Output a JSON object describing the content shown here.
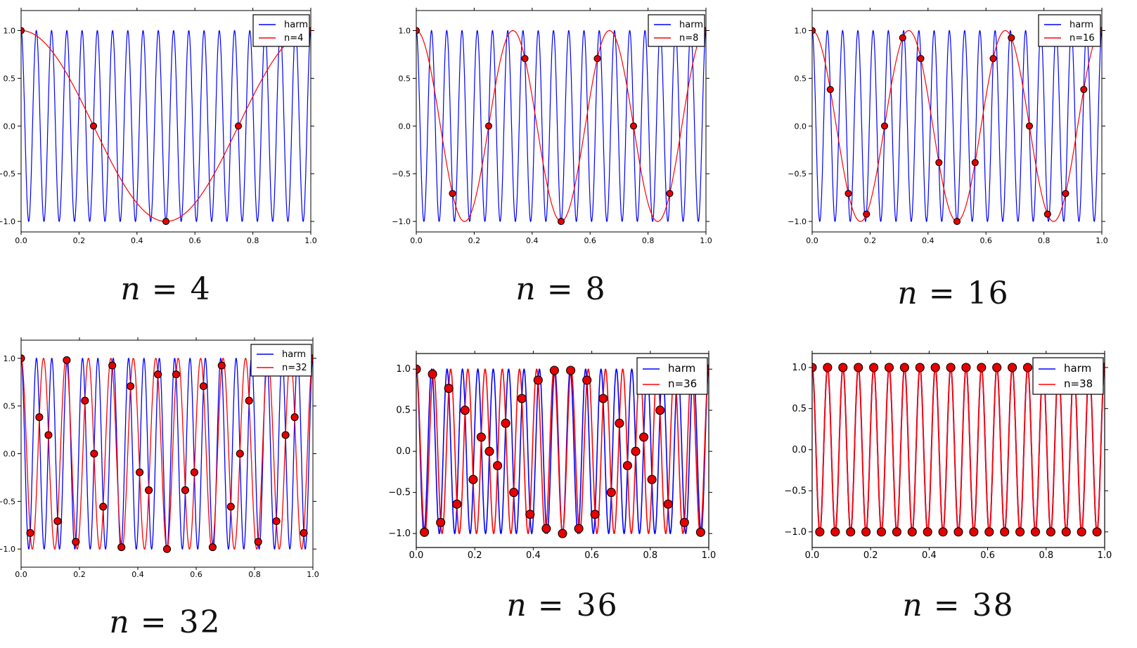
{
  "figure": {
    "background": "#ffffff",
    "description_colors": {
      "harmonic": "#0000ff",
      "alias": "#ff0000",
      "marker_fill": "#e60000",
      "marker_edge": "#000000",
      "axes": "#000000"
    }
  },
  "chart_data": [
    {
      "id": "n4",
      "type": "line",
      "caption": "n = 4",
      "caption_var": "n",
      "caption_rest": " = 4",
      "xlim": [
        0,
        1
      ],
      "ylim": [
        -1.11,
        1.21
      ],
      "x_ticks": [
        0.0,
        0.2,
        0.4,
        0.6,
        0.8,
        1.0
      ],
      "x_tick_labels": [
        "0.0",
        "0.2",
        "0.4",
        "0.6",
        "0.8",
        "1.0"
      ],
      "y_ticks": [
        -1.0,
        -0.5,
        0.0,
        0.5,
        1.0
      ],
      "y_tick_labels": [
        "−1.0",
        "−0.5",
        "0.0",
        "0.5",
        "1.0"
      ],
      "harmonic_frequency": 19,
      "alias_frequency": 1,
      "n_samples": 4,
      "legend": {
        "position": "upper right",
        "entries": [
          {
            "label": "harm",
            "color": "#0000ff"
          },
          {
            "label": "n=4",
            "color": "#ff0000"
          }
        ]
      },
      "series": [
        {
          "name": "harm",
          "type": "cosine",
          "frequency": 19,
          "amplitude": 1,
          "color": "#0000ff"
        },
        {
          "name": "n=4",
          "type": "cosine",
          "frequency": 1,
          "amplitude": 1,
          "color": "#ff0000"
        },
        {
          "name": "samples",
          "type": "scatter",
          "color": "#e60000",
          "edge": "#000000",
          "x": [
            0,
            0.25,
            0.5,
            0.75,
            1
          ],
          "y": [
            1,
            0,
            -1,
            0,
            1
          ]
        }
      ]
    },
    {
      "id": "n8",
      "type": "line",
      "caption": "n = 8",
      "caption_var": "n",
      "caption_rest": " = 8",
      "xlim": [
        0,
        1
      ],
      "ylim": [
        -1.11,
        1.21
      ],
      "x_ticks": [
        0.0,
        0.2,
        0.4,
        0.6,
        0.8,
        1.0
      ],
      "x_tick_labels": [
        "0.0",
        "0.2",
        "0.4",
        "0.6",
        "0.8",
        "1.0"
      ],
      "y_ticks": [
        -1.0,
        -0.5,
        0.0,
        0.5,
        1.0
      ],
      "y_tick_labels": [
        "−1.0",
        "−0.5",
        "0.0",
        "0.5",
        "1.0"
      ],
      "harmonic_frequency": 19,
      "alias_frequency": 3,
      "n_samples": 8,
      "legend": {
        "position": "upper right",
        "entries": [
          {
            "label": "harm",
            "color": "#0000ff"
          },
          {
            "label": "n=8",
            "color": "#ff0000"
          }
        ]
      },
      "series": [
        {
          "name": "harm",
          "type": "cosine",
          "frequency": 19,
          "amplitude": 1,
          "color": "#0000ff"
        },
        {
          "name": "n=8",
          "type": "cosine",
          "frequency": 3,
          "amplitude": 1,
          "color": "#ff0000"
        },
        {
          "name": "samples",
          "type": "scatter",
          "color": "#e60000",
          "edge": "#000000",
          "x": [
            0,
            0.125,
            0.25,
            0.375,
            0.5,
            0.625,
            0.75,
            0.875,
            1
          ],
          "y": [
            1,
            -0.7071,
            0,
            0.7071,
            -1,
            0.7071,
            0,
            -0.7071,
            1
          ]
        }
      ]
    },
    {
      "id": "n16",
      "type": "line",
      "caption": "n = 16",
      "caption_var": "n",
      "caption_rest": " = 16",
      "xlim": [
        0,
        1
      ],
      "ylim": [
        -1.11,
        1.21
      ],
      "x_ticks": [
        0.0,
        0.2,
        0.4,
        0.6,
        0.8,
        1.0
      ],
      "x_tick_labels": [
        "0.0",
        "0.2",
        "0.4",
        "0.6",
        "0.8",
        "1.0"
      ],
      "y_ticks": [
        -1.0,
        -0.5,
        0.0,
        0.5,
        1.0
      ],
      "y_tick_labels": [
        "−1.0",
        "−0.5",
        "0.0",
        "0.5",
        "1.0"
      ],
      "harmonic_frequency": 19,
      "alias_frequency": 3,
      "n_samples": 16,
      "legend": {
        "position": "upper right",
        "entries": [
          {
            "label": "harm",
            "color": "#0000ff"
          },
          {
            "label": "n=16",
            "color": "#ff0000"
          }
        ]
      },
      "series": [
        {
          "name": "harm",
          "type": "cosine",
          "frequency": 19,
          "amplitude": 1,
          "color": "#0000ff"
        },
        {
          "name": "n=16",
          "type": "cosine",
          "frequency": 3,
          "amplitude": 1,
          "color": "#ff0000"
        },
        {
          "name": "samples",
          "type": "scatter",
          "color": "#e60000",
          "edge": "#000000",
          "x": [
            0,
            0.0625,
            0.125,
            0.1875,
            0.25,
            0.3125,
            0.375,
            0.4375,
            0.5,
            0.5625,
            0.625,
            0.6875,
            0.75,
            0.8125,
            0.875,
            0.9375,
            1
          ],
          "y": [
            1,
            0.3827,
            -0.7071,
            -0.9239,
            0,
            0.9239,
            0.7071,
            -0.3827,
            -1,
            -0.3827,
            0.7071,
            0.9239,
            0,
            -0.9239,
            -0.7071,
            0.3827,
            1
          ]
        }
      ]
    },
    {
      "id": "n32",
      "type": "line",
      "caption": "n = 32",
      "caption_var": "n",
      "caption_rest": " = 32",
      "xlim": [
        0,
        1
      ],
      "ylim": [
        -1.19,
        1.19
      ],
      "x_ticks": [
        0.0,
        0.2,
        0.4,
        0.6,
        0.8,
        1.0
      ],
      "x_tick_labels": [
        "0.0",
        "0.2",
        "0.4",
        "0.6",
        "0.8",
        "1.0"
      ],
      "y_ticks": [
        -1.0,
        -0.5,
        0.0,
        0.5,
        1.0
      ],
      "y_tick_labels": [
        "−1.0",
        "−0.5",
        "0.0",
        "0.5",
        "1.0"
      ],
      "harmonic_frequency": 19,
      "alias_frequency": 13,
      "n_samples": 32,
      "legend": {
        "position": "upper right",
        "entries": [
          {
            "label": "harm",
            "color": "#0000ff"
          },
          {
            "label": "n=32",
            "color": "#ff0000"
          }
        ]
      },
      "series": [
        {
          "name": "harm",
          "type": "cosine",
          "frequency": 19,
          "amplitude": 1,
          "color": "#0000ff"
        },
        {
          "name": "n=32",
          "type": "cosine",
          "frequency": 13,
          "amplitude": 1,
          "color": "#ff0000"
        },
        {
          "name": "samples",
          "type": "scatter",
          "color": "#e60000",
          "edge": "#000000",
          "x": [
            0,
            0.0313,
            0.0625,
            0.0938,
            0.125,
            0.1563,
            0.1875,
            0.2188,
            0.25,
            0.2813,
            0.3125,
            0.3438,
            0.375,
            0.4063,
            0.4375,
            0.4688,
            0.5,
            0.5313,
            0.5625,
            0.5938,
            0.625,
            0.6563,
            0.6875,
            0.7188,
            0.75,
            0.7813,
            0.8125,
            0.8438,
            0.875,
            0.9063,
            0.9375,
            0.9688,
            1
          ],
          "y": [
            1,
            -0.8315,
            0.3827,
            0.1951,
            -0.7071,
            0.9808,
            -0.9239,
            0.5556,
            0,
            -0.5556,
            0.9239,
            -0.9808,
            0.7071,
            -0.1951,
            -0.3827,
            0.8315,
            -1,
            0.8315,
            -0.3827,
            -0.1951,
            0.7071,
            -0.9808,
            0.9239,
            -0.5556,
            0,
            0.5556,
            -0.9239,
            0.9808,
            -0.7071,
            0.1951,
            0.3827,
            -0.8315,
            1
          ]
        }
      ]
    },
    {
      "id": "n36",
      "type": "line",
      "caption": "n = 36",
      "caption_var": "n",
      "caption_rest": " = 36",
      "xlim": [
        0,
        1
      ],
      "ylim": [
        -1.17,
        1.19
      ],
      "x_ticks": [
        0.0,
        0.2,
        0.4,
        0.6,
        0.8,
        1.0
      ],
      "x_tick_labels": [
        "0.0",
        "0.2",
        "0.4",
        "0.6",
        "0.8",
        "1.0"
      ],
      "y_ticks": [
        -1.0,
        -0.5,
        0.0,
        0.5,
        1.0
      ],
      "y_tick_labels": [
        "−1.0",
        "−0.5",
        "0.0",
        "0.5",
        "1.0"
      ],
      "harmonic_frequency": 19,
      "alias_frequency": 17,
      "n_samples": 36,
      "legend": {
        "position": "upper right",
        "entries": [
          {
            "label": "harm",
            "color": "#0000ff"
          },
          {
            "label": "n=36",
            "color": "#ff0000"
          }
        ]
      },
      "series": [
        {
          "name": "harm",
          "type": "cosine",
          "frequency": 19,
          "amplitude": 1,
          "color": "#0000ff"
        },
        {
          "name": "n=36",
          "type": "cosine",
          "frequency": 17,
          "amplitude": 1,
          "color": "#ff0000"
        },
        {
          "name": "samples",
          "type": "scatter",
          "color": "#e60000",
          "edge": "#000000",
          "x": [
            0,
            0.0278,
            0.0556,
            0.0833,
            0.1111,
            0.1389,
            0.1667,
            0.1944,
            0.2222,
            0.25,
            0.2778,
            0.3056,
            0.3333,
            0.3611,
            0.3889,
            0.4167,
            0.4444,
            0.4722,
            0.5,
            0.5278,
            0.5556,
            0.5833,
            0.6111,
            0.6389,
            0.6667,
            0.6944,
            0.7222,
            0.75,
            0.7778,
            0.8056,
            0.8333,
            0.8611,
            0.8889,
            0.9167,
            0.9444,
            0.9722,
            1
          ],
          "y": [
            1,
            -0.9848,
            0.9397,
            -0.866,
            0.766,
            -0.6428,
            0.5,
            -0.342,
            0.1736,
            0,
            -0.1736,
            0.342,
            -0.5,
            0.6428,
            -0.766,
            0.866,
            -0.9397,
            0.9848,
            -1,
            0.9848,
            -0.9397,
            0.866,
            -0.766,
            0.6428,
            -0.5,
            0.342,
            -0.1736,
            0,
            0.1736,
            -0.342,
            0.5,
            -0.6428,
            0.766,
            -0.866,
            0.9397,
            -0.9848,
            1
          ]
        }
      ]
    },
    {
      "id": "n38",
      "type": "line",
      "caption": "n = 38",
      "caption_var": "n",
      "caption_rest": " = 38",
      "xlim": [
        0,
        1
      ],
      "ylim": [
        -1.19,
        1.17
      ],
      "x_ticks": [
        0.0,
        0.2,
        0.4,
        0.6,
        0.8,
        1.0
      ],
      "x_tick_labels": [
        "0.0",
        "0.2",
        "0.4",
        "0.6",
        "0.8",
        "1.0"
      ],
      "y_ticks": [
        -1.0,
        -0.5,
        0.0,
        0.5,
        1.0
      ],
      "y_tick_labels": [
        "−1.0",
        "−0.5",
        "0.0",
        "0.5",
        "1.0"
      ],
      "harmonic_frequency": 19,
      "alias_frequency": 19,
      "n_samples": 38,
      "legend": {
        "position": "upper right",
        "entries": [
          {
            "label": "harm",
            "color": "#0000ff"
          },
          {
            "label": "n=38",
            "color": "#ff0000"
          }
        ]
      },
      "series": [
        {
          "name": "harm",
          "type": "cosine",
          "frequency": 19,
          "amplitude": 1,
          "color": "#0000ff"
        },
        {
          "name": "n=38",
          "type": "cosine",
          "frequency": 19,
          "amplitude": 1,
          "color": "#ff0000"
        },
        {
          "name": "samples",
          "type": "scatter",
          "color": "#e60000",
          "edge": "#000000",
          "x": [
            0,
            0.0263,
            0.0526,
            0.0789,
            0.1053,
            0.1316,
            0.1579,
            0.1842,
            0.2105,
            0.2368,
            0.2632,
            0.2895,
            0.3158,
            0.3421,
            0.3684,
            0.3947,
            0.4211,
            0.4474,
            0.4737,
            0.5,
            0.5263,
            0.5526,
            0.5789,
            0.6053,
            0.6316,
            0.6579,
            0.6842,
            0.7105,
            0.7368,
            0.7632,
            0.7895,
            0.8158,
            0.8421,
            0.8684,
            0.8947,
            0.9211,
            0.9474,
            0.9737,
            1
          ],
          "y": [
            1,
            -1,
            1,
            -1,
            1,
            -1,
            1,
            -1,
            1,
            -1,
            1,
            -1,
            1,
            -1,
            1,
            -1,
            1,
            -1,
            1,
            -1,
            1,
            -1,
            1,
            -1,
            1,
            -1,
            1,
            -1,
            1,
            -1,
            1,
            -1,
            1,
            -1,
            1,
            -1,
            1,
            -1,
            1
          ]
        }
      ]
    }
  ]
}
